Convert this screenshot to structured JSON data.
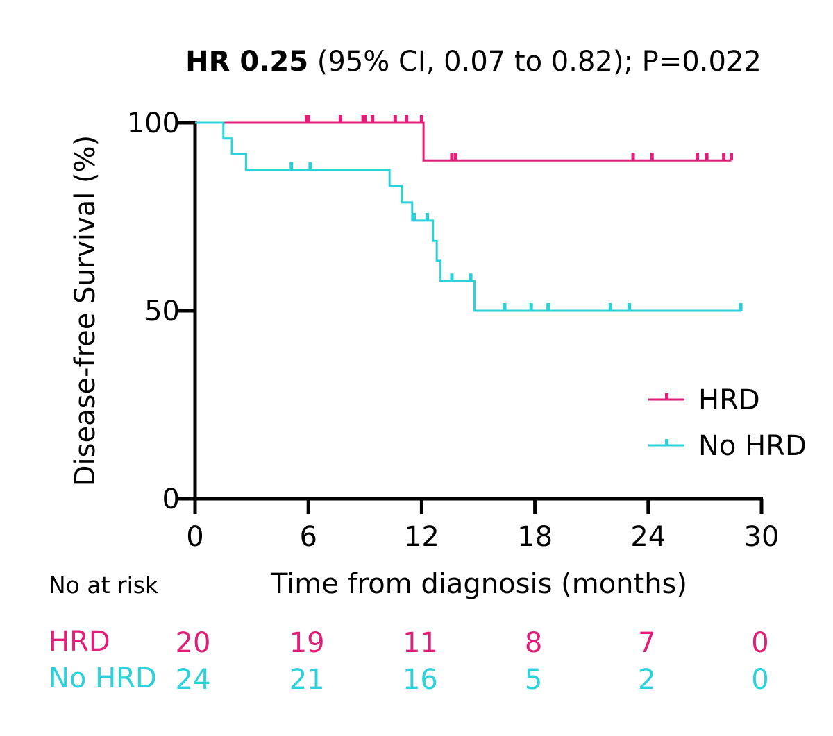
{
  "chart_data": {
    "type": "line",
    "subtype": "kaplan-meier",
    "title_bold": "HR 0.25",
    "title_rest": " (95% CI, 0.07 to 0.82); P=0.022",
    "xlabel": "Time from diagnosis (months)",
    "ylabel": "Disease-free Survival (%)",
    "xlim": [
      0,
      30
    ],
    "ylim": [
      0,
      100
    ],
    "xticks": [
      "0",
      "6",
      "12",
      "18",
      "24",
      "30"
    ],
    "xtick_values": [
      0,
      6,
      12,
      18,
      24,
      30
    ],
    "yticks": [
      "0",
      "50",
      "100"
    ],
    "ytick_values": [
      0,
      50,
      100
    ],
    "grid": false,
    "legend_placement": "right",
    "series": [
      {
        "name": "HRD",
        "color": "#E01F78",
        "steps": [
          [
            0,
            100
          ],
          [
            12.1,
            90
          ],
          [
            28.4,
            90
          ]
        ],
        "censored": [
          [
            5.9,
            100
          ],
          [
            6.0,
            100
          ],
          [
            7.7,
            100
          ],
          [
            8.9,
            100
          ],
          [
            9.0,
            100
          ],
          [
            9.4,
            100
          ],
          [
            10.6,
            100
          ],
          [
            11.2,
            100
          ],
          [
            12.0,
            100
          ],
          [
            13.6,
            90
          ],
          [
            13.8,
            90
          ],
          [
            23.2,
            90
          ],
          [
            24.2,
            90
          ],
          [
            26.6,
            90
          ],
          [
            27.1,
            90
          ],
          [
            28.0,
            90
          ],
          [
            28.4,
            90
          ]
        ]
      },
      {
        "name": "No HRD",
        "color": "#2BD2DA",
        "steps": [
          [
            0,
            100
          ],
          [
            1.5,
            95.8
          ],
          [
            1.95,
            91.7
          ],
          [
            2.7,
            87.5
          ],
          [
            10.3,
            83.3
          ],
          [
            10.95,
            78.8
          ],
          [
            11.5,
            74.0
          ],
          [
            12.6,
            68.6
          ],
          [
            12.8,
            63.3
          ],
          [
            13.0,
            57.9
          ],
          [
            14.8,
            50
          ],
          [
            28.9,
            50
          ]
        ],
        "censored": [
          [
            5.1,
            87.5
          ],
          [
            6.1,
            87.5
          ],
          [
            11.6,
            74.0
          ],
          [
            12.3,
            74.0
          ],
          [
            13.6,
            57.9
          ],
          [
            14.6,
            57.9
          ],
          [
            16.4,
            50
          ],
          [
            17.8,
            50
          ],
          [
            18.7,
            50
          ],
          [
            22.0,
            50
          ],
          [
            23.0,
            50
          ],
          [
            28.9,
            50
          ]
        ]
      }
    ],
    "risk_table": {
      "label": "No at risk",
      "rows": [
        {
          "name": "HRD",
          "values": [
            "20",
            "19",
            "11",
            "8",
            "7",
            "0"
          ]
        },
        {
          "name": "No HRD",
          "values": [
            "24",
            "21",
            "16",
            "5",
            "2",
            "0"
          ]
        }
      ]
    }
  }
}
